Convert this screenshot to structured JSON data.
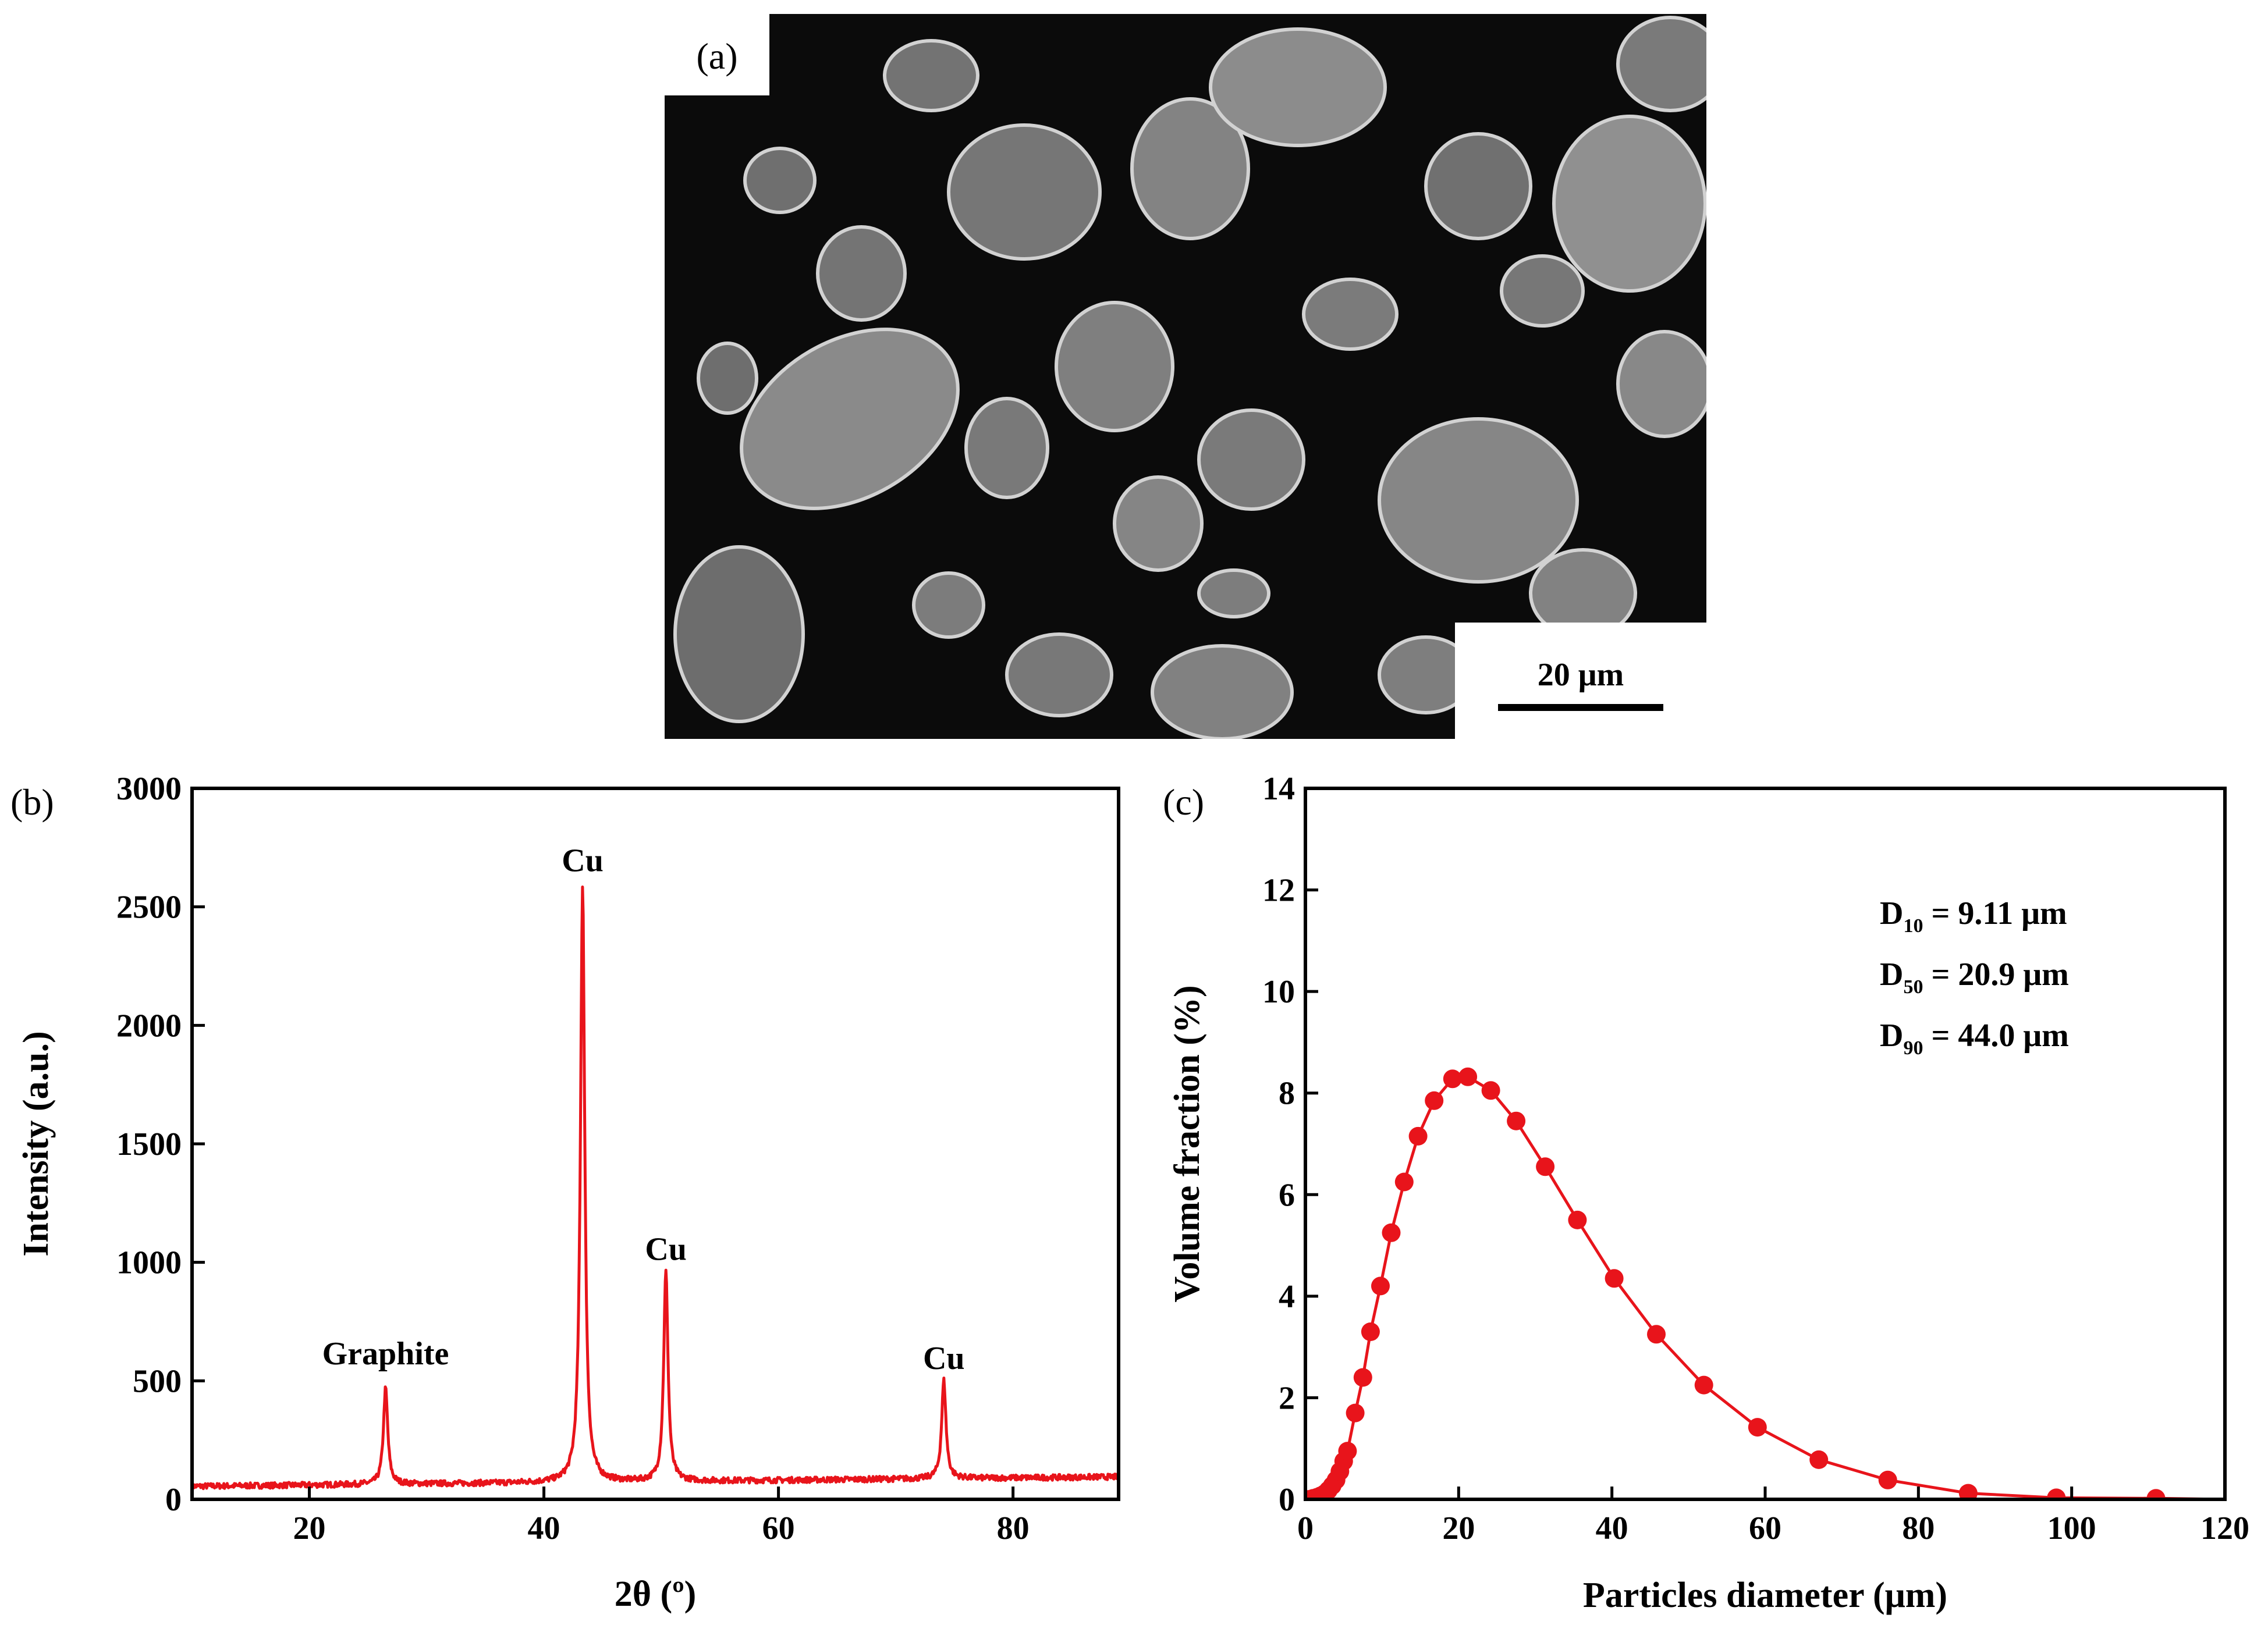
{
  "panel_a": {
    "label": "(a)",
    "scale_bar_label": "20 μm"
  },
  "chart_data": [
    {
      "panel": "(b)",
      "type": "line",
      "xlabel": "2θ (º)",
      "ylabel": "Intensity (a.u.)",
      "xlim": [
        10,
        89
      ],
      "ylim": [
        0,
        3000
      ],
      "x_ticks": [
        20,
        40,
        60,
        80
      ],
      "y_ticks": [
        0,
        500,
        1000,
        1500,
        2000,
        2500,
        3000
      ],
      "color": "#e8141b",
      "grid": false,
      "baseline": {
        "start": 55,
        "end": 95
      },
      "peaks": [
        {
          "x": 26.5,
          "y": 460
        },
        {
          "x": 43.3,
          "y": 2570
        },
        {
          "x": 50.4,
          "y": 940
        },
        {
          "x": 74.1,
          "y": 470
        }
      ],
      "annotations": [
        {
          "text": "Graphite",
          "x": 26.5,
          "y": 570
        },
        {
          "text": "Cu",
          "x": 43.3,
          "y": 2650
        },
        {
          "text": "Cu",
          "x": 50.4,
          "y": 1010
        },
        {
          "text": "Cu",
          "x": 74.1,
          "y": 550
        }
      ]
    },
    {
      "panel": "(c)",
      "type": "line",
      "xlabel": "Particles diameter (μm)",
      "ylabel": "Volume fraction (%)",
      "xlim": [
        0,
        120
      ],
      "ylim": [
        0,
        14
      ],
      "x_ticks": [
        0,
        20,
        40,
        60,
        80,
        100,
        120
      ],
      "y_ticks": [
        0,
        2,
        4,
        6,
        8,
        10,
        12,
        14
      ],
      "color": "#e8141b",
      "grid": false,
      "markers": "circle",
      "series": [
        {
          "x": [
            0.5,
            1.0,
            1.5,
            2.0,
            2.5,
            3.0,
            3.5,
            4.0,
            4.5,
            5.0,
            5.5,
            6.5,
            7.5,
            8.5,
            9.8,
            11.2,
            12.9,
            14.7,
            16.8,
            19.2,
            21.2,
            24.2,
            27.5,
            31.3,
            35.5,
            40.3,
            45.8,
            52.0,
            59.0,
            67.0,
            76.0,
            86.5,
            98.0,
            111.0
          ],
          "y": [
            0.0,
            0.02,
            0.04,
            0.07,
            0.11,
            0.18,
            0.27,
            0.38,
            0.55,
            0.75,
            0.95,
            1.7,
            2.4,
            3.3,
            4.2,
            5.25,
            6.25,
            7.15,
            7.85,
            8.28,
            8.32,
            8.05,
            7.45,
            6.55,
            5.5,
            4.35,
            3.25,
            2.25,
            1.42,
            0.78,
            0.38,
            0.12,
            0.03,
            0.02
          ]
        }
      ],
      "stats": [
        {
          "prefix": "D",
          "sub": "10",
          "value": " = 9.11 μm"
        },
        {
          "prefix": "D",
          "sub": "50",
          "value": " = 20.9 μm"
        },
        {
          "prefix": "D",
          "sub": "90",
          "value": " = 44.0 μm"
        }
      ]
    }
  ]
}
